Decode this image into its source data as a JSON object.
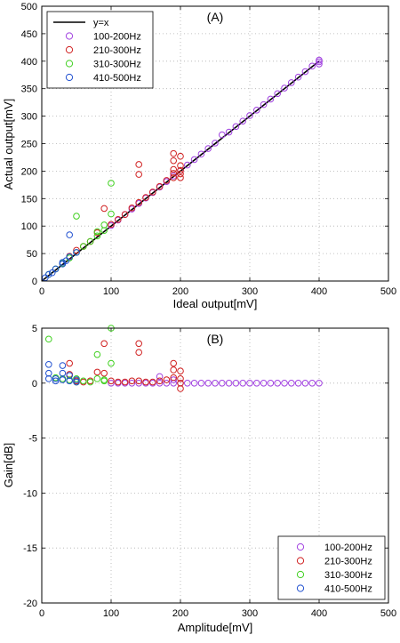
{
  "chart_data": [
    {
      "type": "scatter",
      "title": "(A)",
      "xlabel": "Ideal output[mV]",
      "ylabel": "Actual output[mV]",
      "xlim": [
        0,
        500
      ],
      "ylim": [
        0,
        500
      ],
      "xticks": [
        0,
        100,
        200,
        300,
        400,
        500
      ],
      "yticks": [
        0,
        50,
        100,
        150,
        200,
        250,
        300,
        350,
        400,
        450,
        500
      ],
      "grid": true,
      "legend_position": "top-left",
      "reference_line": {
        "name": "y=x",
        "x": [
          0,
          400
        ],
        "y": [
          0,
          400
        ],
        "color": "#000000"
      },
      "series": [
        {
          "name": "100-200Hz",
          "color": "#a040e0",
          "x": [
            100,
            110,
            120,
            130,
            140,
            150,
            160,
            170,
            180,
            190,
            200,
            210,
            220,
            230,
            240,
            250,
            260,
            270,
            280,
            290,
            300,
            310,
            320,
            330,
            340,
            350,
            360,
            370,
            380,
            390,
            400,
            400,
            400
          ],
          "y": [
            101,
            111,
            121,
            131,
            141,
            151,
            161,
            171,
            181,
            191,
            201,
            211,
            221,
            231,
            241,
            251,
            266,
            271,
            281,
            291,
            301,
            311,
            321,
            331,
            341,
            351,
            361,
            371,
            381,
            391,
            395,
            399,
            402
          ]
        },
        {
          "name": "210-300Hz",
          "color": "#d02020",
          "x": [
            40,
            50,
            60,
            70,
            80,
            90,
            100,
            110,
            120,
            130,
            140,
            140,
            140,
            150,
            160,
            170,
            180,
            190,
            190,
            190,
            190,
            190,
            200,
            200,
            200,
            200,
            200
          ],
          "y": [
            45,
            56,
            63,
            72,
            88,
            132,
            103,
            112,
            121,
            133,
            212,
            194,
            143,
            152,
            162,
            172,
            183,
            232,
            219,
            203,
            196,
            188,
            227,
            210,
            201,
            195,
            188
          ]
        },
        {
          "name": "310-300Hz",
          "color": "#40d020",
          "x": [
            10,
            20,
            30,
            40,
            50,
            50,
            60,
            70,
            80,
            80,
            90,
            90,
            100,
            100
          ],
          "y": [
            12,
            22,
            32,
            42,
            118,
            52,
            63,
            72,
            82,
            90,
            92,
            102,
            178,
            122
          ]
        },
        {
          "name": "410-500Hz",
          "color": "#2050d0",
          "x": [
            5,
            10,
            15,
            20,
            30,
            30,
            35,
            40,
            40,
            50
          ],
          "y": [
            6,
            12,
            15,
            22,
            34,
            31,
            37,
            84,
            44,
            52
          ]
        }
      ]
    },
    {
      "type": "scatter",
      "title": "(B)",
      "xlabel": "Amplitude[mV]",
      "ylabel": "Gain[dB]",
      "xlim": [
        0,
        500
      ],
      "ylim": [
        -20,
        5
      ],
      "xticks": [
        0,
        100,
        200,
        300,
        400,
        500
      ],
      "yticks": [
        -20,
        -15,
        -10,
        -5,
        0,
        5
      ],
      "grid": true,
      "legend_position": "bottom-right",
      "series": [
        {
          "name": "100-200Hz",
          "color": "#a040e0",
          "x": [
            100,
            110,
            120,
            130,
            140,
            150,
            160,
            170,
            180,
            190,
            200,
            210,
            220,
            230,
            240,
            250,
            260,
            270,
            280,
            290,
            300,
            310,
            320,
            330,
            340,
            350,
            360,
            370,
            380,
            390,
            400,
            170,
            190
          ],
          "y": [
            0,
            0,
            0,
            0,
            0,
            0,
            0,
            0,
            0,
            0,
            0,
            0,
            0,
            0,
            0,
            0,
            0,
            0,
            0,
            0,
            0,
            0,
            0,
            0,
            0,
            0,
            0,
            0,
            0,
            0,
            0,
            0.6,
            0.3
          ]
        },
        {
          "name": "210-300Hz",
          "color": "#d02020",
          "x": [
            40,
            40,
            50,
            60,
            70,
            80,
            90,
            90,
            100,
            110,
            120,
            130,
            140,
            140,
            140,
            150,
            160,
            170,
            180,
            190,
            190,
            190,
            200,
            200,
            200,
            200
          ],
          "y": [
            1.8,
            0.8,
            0.2,
            0.1,
            0.2,
            1.0,
            3.6,
            0.9,
            0.2,
            0.1,
            0.1,
            0.2,
            3.6,
            2.8,
            0.2,
            0.1,
            0.1,
            0.2,
            0.3,
            1.8,
            1.2,
            0.5,
            1.1,
            0.4,
            0,
            -0.5
          ]
        },
        {
          "name": "310-300Hz",
          "color": "#40d020",
          "x": [
            10,
            20,
            30,
            40,
            50,
            50,
            60,
            70,
            80,
            80,
            90,
            90,
            100,
            100
          ],
          "y": [
            4.0,
            0.5,
            0.4,
            0.3,
            0.1,
            0.4,
            0.2,
            0.1,
            2.6,
            0.4,
            0.3,
            0.2,
            5.0,
            1.8
          ]
        },
        {
          "name": "410-500Hz",
          "color": "#2050d0",
          "x": [
            10,
            10,
            10,
            20,
            20,
            30,
            30,
            30,
            40,
            40,
            50,
            50
          ],
          "y": [
            1.7,
            0.9,
            0.4,
            0.4,
            0.2,
            1.6,
            0.9,
            0.3,
            0.7,
            0.2,
            0.3,
            0.1
          ]
        }
      ]
    }
  ]
}
